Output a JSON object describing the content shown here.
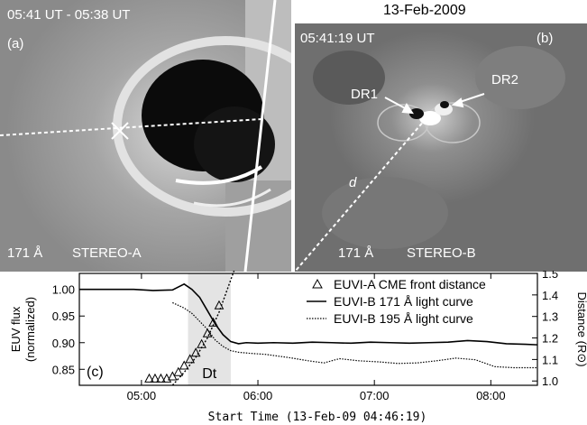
{
  "date_title": "13-Feb-2009",
  "panel_a": {
    "time": "05:41 UT - 05:38 UT",
    "label": "(a)",
    "wavelength": "171 Å",
    "instrument": "STEREO-A"
  },
  "panel_b": {
    "time": "05:41:19 UT",
    "label": "(b)",
    "wavelength": "171 Å",
    "instrument": "STEREO-B",
    "dr1": "DR1",
    "dr2": "DR2",
    "distance_label": "d"
  },
  "chart_data": {
    "type": "line",
    "panel_label": "(c)",
    "xlabel": "Start Time (13-Feb-09 04:46:19)",
    "ylabel_left": "EUV flux\n(normalized)",
    "ylabel_right": "Distance (R⊙)",
    "x_ticks": [
      "05:00",
      "06:00",
      "07:00",
      "08:00"
    ],
    "x_tick_values": [
      14,
      74,
      134,
      194
    ],
    "xlim": [
      -18,
      218
    ],
    "y_ticks": [
      "0.85",
      "0.90",
      "0.95",
      "1.00"
    ],
    "y_tick_values": [
      0.85,
      0.9,
      0.95,
      1.0
    ],
    "ylim": [
      0.82,
      1.03
    ],
    "y2_ticks": [
      "1.0",
      "1.1",
      "1.2",
      "1.3",
      "1.4",
      "1.5"
    ],
    "y2_tick_values": [
      1.0,
      1.1,
      1.2,
      1.3,
      1.4,
      1.5
    ],
    "y2lim": [
      0.98,
      1.5
    ],
    "shaded_region": {
      "label": "Dt",
      "x_start": 38,
      "x_end": 60
    },
    "legend": [
      {
        "label": "EUVI-A CME front distance",
        "style": "triangle"
      },
      {
        "label": "EUVI-B 171 Å light curve",
        "style": "solid"
      },
      {
        "label": "EUVI-B 195 Å light curve",
        "style": "dotted"
      }
    ],
    "series": [
      {
        "name": "EUVI-B 171 Å light curve",
        "style": "solid",
        "axis": "left",
        "x": [
          -18,
          -10,
          0,
          10,
          20,
          30,
          36,
          40,
          44,
          48,
          52,
          56,
          60,
          64,
          68,
          74,
          82,
          92,
          102,
          112,
          122,
          132,
          142,
          152,
          162,
          172,
          182,
          192,
          202,
          212,
          218
        ],
        "y": [
          1.0,
          1.0,
          1.0,
          1.0,
          0.998,
          0.999,
          1.01,
          1.0,
          0.985,
          0.96,
          0.935,
          0.915,
          0.902,
          0.898,
          0.9,
          0.899,
          0.9,
          0.899,
          0.901,
          0.9,
          0.899,
          0.901,
          0.9,
          0.899,
          0.9,
          0.901,
          0.904,
          0.902,
          0.898,
          0.897,
          0.896
        ]
      },
      {
        "name": "EUVI-B 195 Å light curve",
        "style": "dotted",
        "axis": "left",
        "x": [
          30,
          36,
          40,
          44,
          48,
          52,
          56,
          60,
          64,
          70,
          78,
          90,
          100,
          108,
          116,
          126,
          136,
          146,
          156,
          166,
          176,
          186,
          196,
          206,
          218
        ],
        "y": [
          0.975,
          0.965,
          0.955,
          0.94,
          0.925,
          0.905,
          0.893,
          0.885,
          0.882,
          0.88,
          0.878,
          0.872,
          0.866,
          0.862,
          0.87,
          0.866,
          0.864,
          0.861,
          0.862,
          0.866,
          0.871,
          0.868,
          0.855,
          0.853,
          0.853
        ]
      },
      {
        "name": "EUVI-A CME front distance",
        "style": "triangle",
        "axis": "right",
        "x": [
          18,
          21,
          24,
          27,
          30,
          33,
          36,
          39,
          42,
          45,
          48,
          51,
          54
        ],
        "y": [
          1.01,
          1.01,
          1.01,
          1.01,
          1.02,
          1.04,
          1.07,
          1.1,
          1.13,
          1.17,
          1.22,
          1.27,
          1.35
        ]
      },
      {
        "name": "fit",
        "style": "dotted-fit",
        "axis": "right",
        "x": [
          30,
          36,
          42,
          48,
          54,
          58,
          62
        ],
        "y": [
          0.98,
          1.04,
          1.11,
          1.2,
          1.32,
          1.42,
          1.52
        ]
      }
    ]
  }
}
